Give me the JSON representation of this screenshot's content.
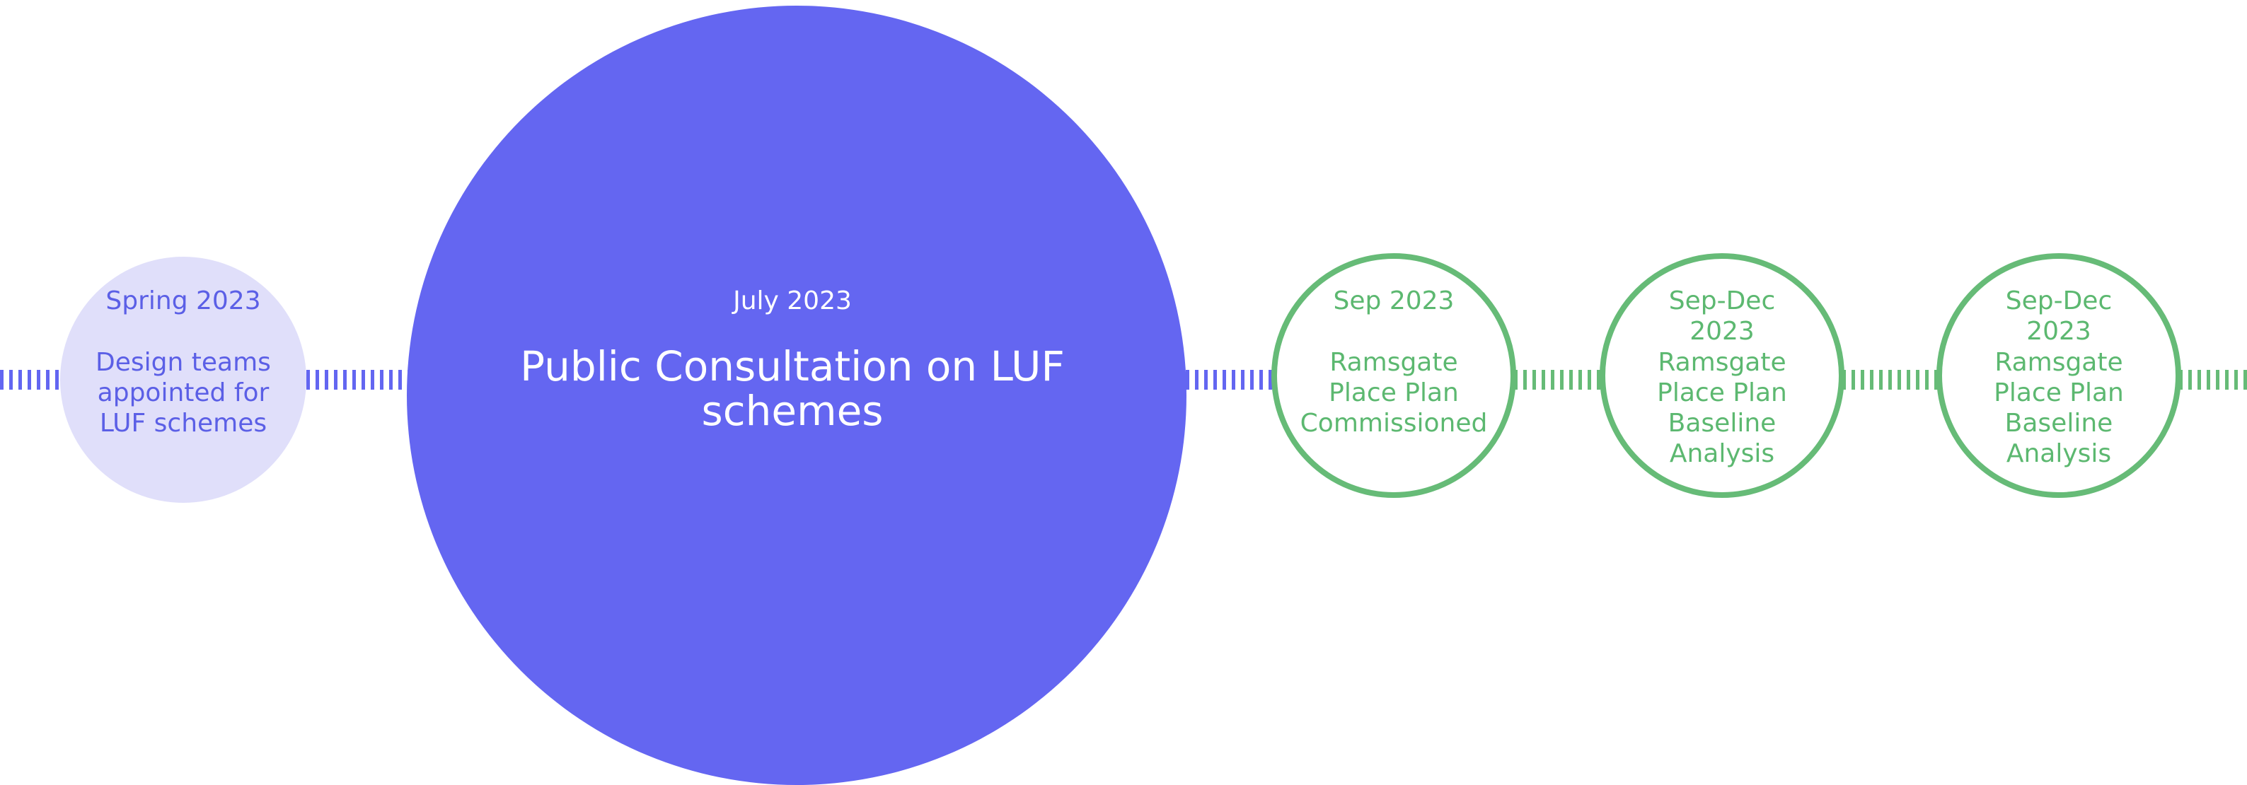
{
  "timeline": [
    {
      "date_lines": [
        "Spring 2023"
      ],
      "lines": [
        "Design teams",
        "appointed for",
        "LUF schemes"
      ]
    },
    {
      "date_lines": [
        "July 2023"
      ],
      "lines": [
        "Public Consultation on LUF",
        "schemes"
      ]
    },
    {
      "date_lines": [
        "Sep 2023"
      ],
      "lines": [
        "Ramsgate",
        "Place Plan",
        "Commissioned"
      ]
    },
    {
      "date_lines": [
        "Sep-Dec",
        "2023"
      ],
      "lines": [
        "Ramsgate",
        "Place Plan",
        "Baseline",
        "Analysis"
      ]
    },
    {
      "date_lines": [
        "Sep-Dec",
        "2023"
      ],
      "lines": [
        "Ramsgate",
        "Place Plan",
        "Baseline",
        "Analysis"
      ]
    }
  ]
}
